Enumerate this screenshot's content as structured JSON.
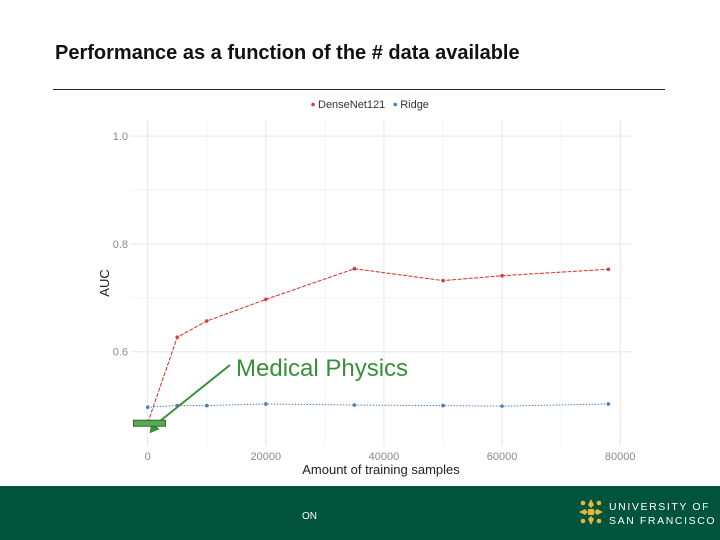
{
  "slide": {
    "title": "Performance as a function of the # data available"
  },
  "chart_data": {
    "type": "line",
    "title": "",
    "xlabel": "Amount of training samples",
    "ylabel": "AUC",
    "xlim": [
      -3000,
      82000
    ],
    "ylim": [
      0.425,
      1.03
    ],
    "x_ticks": [
      0,
      20000,
      40000,
      60000,
      80000
    ],
    "y_ticks": [
      0.6,
      0.8,
      1.0
    ],
    "x_tick_labels": [
      "0",
      "20000",
      "40000",
      "60000",
      "80000"
    ],
    "y_tick_labels": [
      "0.6",
      "0.8",
      "1.0"
    ],
    "legend": {
      "position": "top",
      "entries": [
        "DenseNet121",
        "Ridge"
      ]
    },
    "series": [
      {
        "name": "DenseNet121",
        "color": "#d43f3a",
        "line_style": "dashed",
        "x": [
          0,
          5000,
          10000,
          20000,
          35000,
          50000,
          60000,
          78000
        ],
        "y": [
          0.468,
          0.627,
          0.657,
          0.697,
          0.754,
          0.732,
          0.741,
          0.753
        ]
      },
      {
        "name": "Ridge",
        "color": "#4a7fbf",
        "line_style": "dotted",
        "x": [
          0,
          5000,
          10000,
          20000,
          35000,
          50000,
          60000,
          78000
        ],
        "y": [
          0.497,
          0.5,
          0.5,
          0.503,
          0.501,
          0.5,
          0.499,
          0.503
        ]
      }
    ],
    "annotation": {
      "text": "Medical Physics",
      "color": "#3a8f3a",
      "points_to": {
        "x": 300,
        "y": 0.445
      }
    }
  },
  "footer": {
    "code": "ON",
    "org_line1": "UNIVERSITY OF",
    "org_line2": "SAN FRANCISCO",
    "bg_color": "#00543c",
    "logo_color": "#e8b43a"
  }
}
